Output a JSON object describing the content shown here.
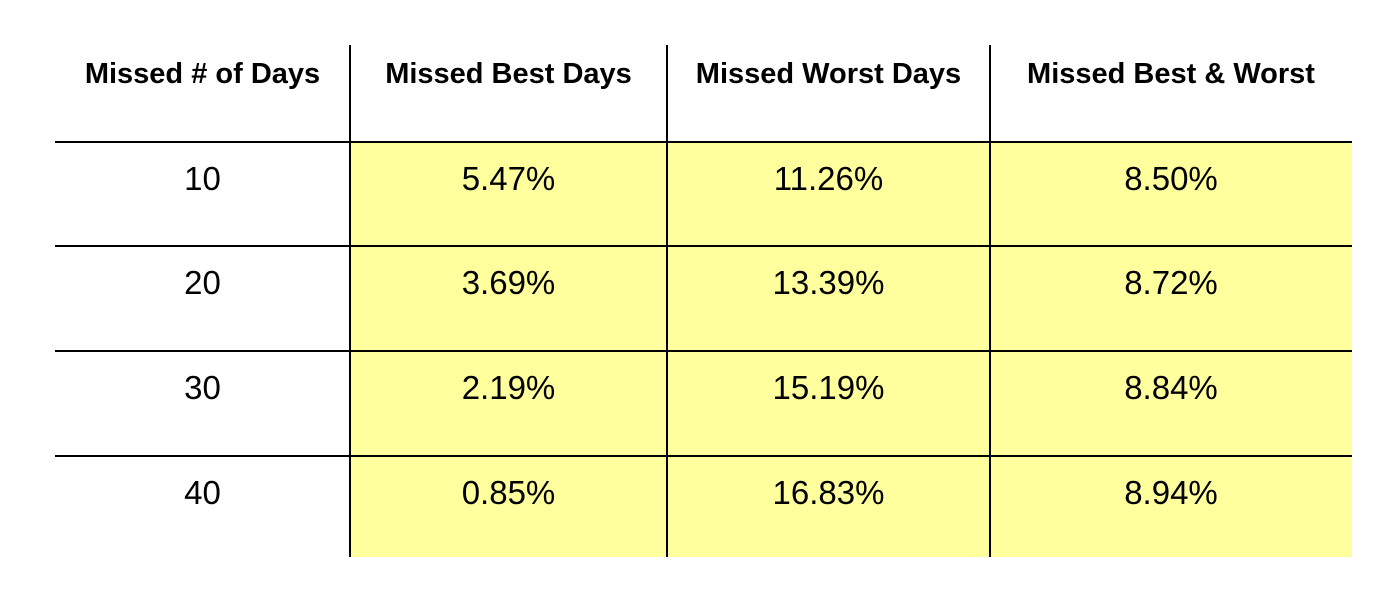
{
  "table": {
    "header": [
      "Missed # of Days",
      "Missed Best Days",
      "Missed Worst Days",
      "Missed Best & Worst"
    ],
    "rows": [
      [
        "10",
        "5.47%",
        "11.26%",
        "8.50%"
      ],
      [
        "20",
        "3.69%",
        "13.39%",
        "8.72%"
      ],
      [
        "30",
        "2.19%",
        "15.19%",
        "8.84%"
      ],
      [
        "40",
        "0.85%",
        "16.83%",
        "8.94%"
      ]
    ]
  }
}
